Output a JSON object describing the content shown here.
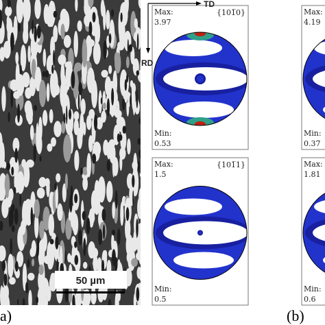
{
  "panel_a": {
    "label": "a)",
    "scale_bar": "50 µm"
  },
  "panel_b": {
    "label": "(b)",
    "axes": {
      "td": "TD",
      "rd": "RD"
    },
    "pole_figures": [
      {
        "plane": "{101̅0}",
        "max_label": "Max:",
        "max": 3.97,
        "min_label": "Min:",
        "min": 0.53
      },
      {
        "max_label": "Max:",
        "max": 4.19,
        "min_label": "Min:",
        "min": 0.37
      },
      {
        "plane": "{101̅1}",
        "max_label": "Max:",
        "max": 1.5,
        "min_label": "Min:",
        "min": 0.5
      },
      {
        "max_label": "Max:",
        "max": 1.81,
        "min_label": "Min:",
        "min": 0.6
      }
    ]
  }
}
